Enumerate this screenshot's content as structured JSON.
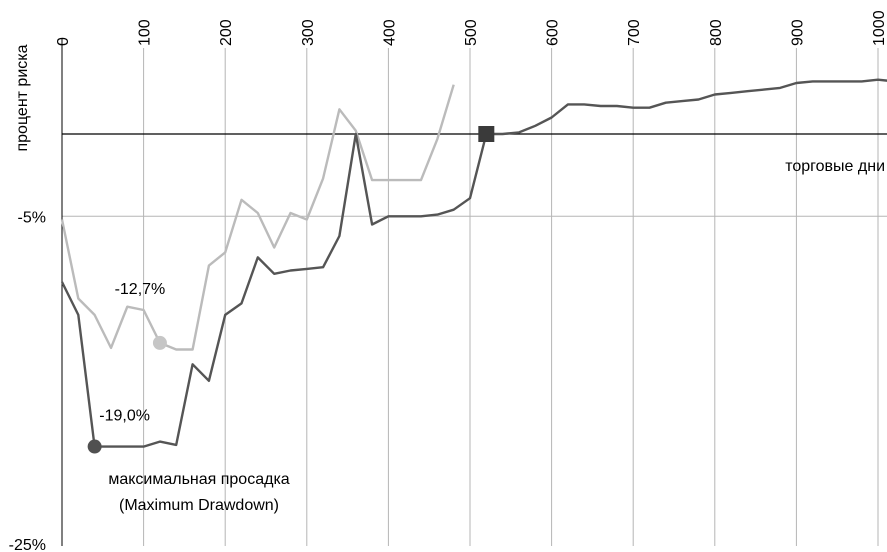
{
  "chart_data": {
    "type": "line",
    "xlabel": "торговые дни",
    "ylabel": "процент риска",
    "xlim": [
      0,
      1000
    ],
    "ylim": [
      -25,
      5
    ],
    "x_ticks": [
      "0",
      "100",
      "200",
      "300",
      "400",
      "500",
      "600",
      "700",
      "800",
      "900",
      "1000"
    ],
    "y_ticks": [
      {
        "value": -5,
        "label": "-5%"
      },
      {
        "value": -25,
        "label": "-25%"
      }
    ],
    "grid": "vertical",
    "series": [
      {
        "color": "#bbbbbb",
        "points": [
          [
            0,
            -5.2
          ],
          [
            20,
            -10
          ],
          [
            40,
            -11
          ],
          [
            60,
            -13
          ],
          [
            80,
            -10.5
          ],
          [
            100,
            -10.7
          ],
          [
            120,
            -12.7
          ],
          [
            140,
            -13.1
          ],
          [
            160,
            -13.1
          ],
          [
            180,
            -8
          ],
          [
            200,
            -7.2
          ],
          [
            220,
            -4
          ],
          [
            240,
            -4.8
          ],
          [
            260,
            -6.9
          ],
          [
            280,
            -4.8
          ],
          [
            300,
            -5.2
          ],
          [
            320,
            -2.7
          ],
          [
            340,
            1.5
          ],
          [
            360,
            0.2
          ],
          [
            380,
            -2.8
          ],
          [
            400,
            -2.8
          ],
          [
            420,
            -2.8
          ],
          [
            440,
            -2.8
          ],
          [
            460,
            -0.3
          ],
          [
            480,
            3
          ]
        ]
      },
      {
        "color": "#555555",
        "points": [
          [
            0,
            -9
          ],
          [
            20,
            -11
          ],
          [
            40,
            -19
          ],
          [
            60,
            -19
          ],
          [
            80,
            -19
          ],
          [
            100,
            -19
          ],
          [
            120,
            -18.7
          ],
          [
            140,
            -18.9
          ],
          [
            160,
            -14
          ],
          [
            180,
            -15
          ],
          [
            200,
            -11
          ],
          [
            220,
            -10.3
          ],
          [
            240,
            -7.5
          ],
          [
            260,
            -8.5
          ],
          [
            280,
            -8.3
          ],
          [
            300,
            -8.2
          ],
          [
            320,
            -8.1
          ],
          [
            340,
            -6.2
          ],
          [
            360,
            0
          ],
          [
            380,
            -5.5
          ],
          [
            400,
            -5
          ],
          [
            420,
            -5
          ],
          [
            440,
            -5
          ],
          [
            460,
            -4.9
          ],
          [
            480,
            -4.6
          ],
          [
            500,
            -3.9
          ],
          [
            520,
            0
          ],
          [
            540,
            0
          ],
          [
            560,
            0.1
          ],
          [
            580,
            0.5
          ],
          [
            600,
            1
          ],
          [
            620,
            1.8
          ],
          [
            640,
            1.8
          ],
          [
            660,
            1.7
          ],
          [
            680,
            1.7
          ],
          [
            700,
            1.6
          ],
          [
            720,
            1.6
          ],
          [
            740,
            1.9
          ],
          [
            760,
            2
          ],
          [
            780,
            2.1
          ],
          [
            800,
            2.4
          ],
          [
            820,
            2.5
          ],
          [
            840,
            2.6
          ],
          [
            860,
            2.7
          ],
          [
            880,
            2.8
          ],
          [
            900,
            3.1
          ],
          [
            920,
            3.2
          ],
          [
            940,
            3.2
          ],
          [
            960,
            3.2
          ],
          [
            980,
            3.2
          ],
          [
            1000,
            3.3
          ],
          [
            1020,
            3.2
          ]
        ]
      }
    ],
    "markers": [
      {
        "type": "circle",
        "x": 120,
        "y": -12.7,
        "color": "#c6c6c6",
        "label": "-12,7%"
      },
      {
        "type": "circle",
        "x": 40,
        "y": -19,
        "color": "#505050",
        "label": "-19,0%"
      },
      {
        "type": "square",
        "x": 520,
        "y": 0,
        "color": "#3a3a3a",
        "label": ""
      }
    ],
    "annotation": [
      "максимальная просадка",
      "(Maximum Drawdown)"
    ]
  }
}
